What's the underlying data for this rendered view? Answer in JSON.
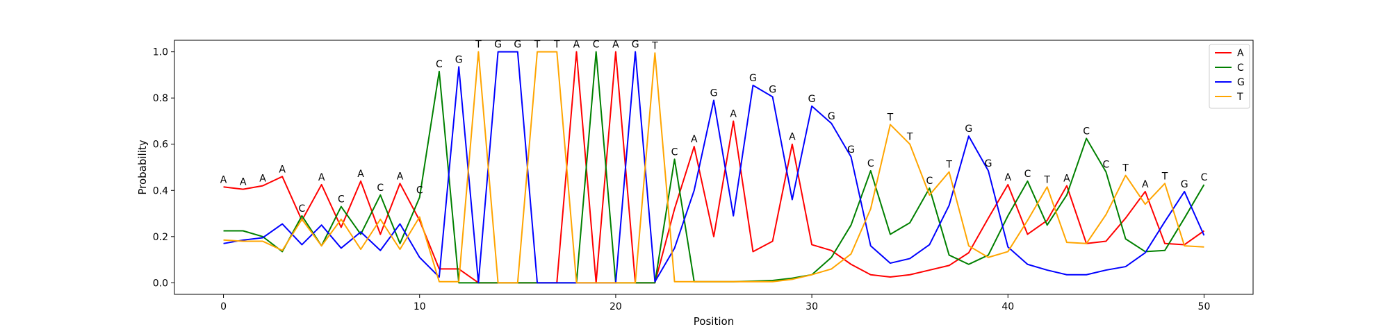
{
  "chart_data": {
    "type": "line",
    "xlabel": "Position",
    "ylabel": "Probability",
    "xlim": [
      -2.5,
      52.5
    ],
    "ylim": [
      -0.05,
      1.05
    ],
    "xticks": [
      0,
      10,
      20,
      30,
      40,
      50
    ],
    "yticks": [
      0.0,
      0.2,
      0.4,
      0.6,
      0.8,
      1.0
    ],
    "xtick_labels": [
      "0",
      "10",
      "20",
      "30",
      "40",
      "50"
    ],
    "ytick_labels": [
      "0.0",
      "0.2",
      "0.4",
      "0.6",
      "0.8",
      "1.0"
    ],
    "grid": false,
    "legend": "top-right",
    "x": [
      0,
      1,
      2,
      3,
      4,
      5,
      6,
      7,
      8,
      9,
      10,
      11,
      12,
      13,
      14,
      15,
      16,
      17,
      18,
      19,
      20,
      21,
      22,
      23,
      24,
      25,
      26,
      27,
      28,
      29,
      30,
      31,
      32,
      33,
      34,
      35,
      36,
      37,
      38,
      39,
      40,
      41,
      42,
      43,
      44,
      45,
      46,
      47,
      48,
      49,
      50
    ],
    "series": [
      {
        "name": "A",
        "color": "#ff0000",
        "values": [
          0.415,
          0.405,
          0.42,
          0.46,
          0.27,
          0.425,
          0.24,
          0.44,
          0.21,
          0.43,
          0.27,
          0.06,
          0.06,
          0.0,
          0.0,
          0.0,
          0.0,
          0.0,
          1.0,
          0.0,
          1.0,
          0.0,
          0.0,
          0.32,
          0.59,
          0.2,
          0.7,
          0.135,
          0.18,
          0.6,
          0.165,
          0.14,
          0.08,
          0.035,
          0.025,
          0.035,
          0.055,
          0.075,
          0.13,
          0.28,
          0.425,
          0.21,
          0.27,
          0.42,
          0.17,
          0.18,
          0.28,
          0.395,
          0.17,
          0.165,
          0.225
        ]
      },
      {
        "name": "C",
        "color": "#008000",
        "values": [
          0.225,
          0.225,
          0.2,
          0.135,
          0.29,
          0.16,
          0.33,
          0.21,
          0.38,
          0.17,
          0.37,
          0.915,
          0.0,
          0.0,
          0.0,
          0.0,
          0.0,
          0.0,
          0.0,
          1.0,
          0.0,
          0.0,
          0.0,
          0.535,
          0.005,
          0.005,
          0.005,
          0.007,
          0.01,
          0.02,
          0.035,
          0.11,
          0.25,
          0.485,
          0.21,
          0.26,
          0.41,
          0.12,
          0.08,
          0.12,
          0.29,
          0.44,
          0.25,
          0.38,
          0.625,
          0.48,
          0.19,
          0.135,
          0.14,
          0.28,
          0.425
        ]
      },
      {
        "name": "G",
        "color": "#0000ff",
        "values": [
          0.17,
          0.185,
          0.195,
          0.255,
          0.165,
          0.25,
          0.15,
          0.22,
          0.14,
          0.255,
          0.11,
          0.025,
          0.935,
          0.0,
          1.0,
          1.0,
          0.0,
          0.0,
          0.0,
          0.0,
          0.0,
          1.0,
          0.005,
          0.15,
          0.4,
          0.79,
          0.29,
          0.855,
          0.805,
          0.36,
          0.765,
          0.69,
          0.545,
          0.16,
          0.085,
          0.105,
          0.165,
          0.335,
          0.635,
          0.485,
          0.155,
          0.08,
          0.055,
          0.035,
          0.035,
          0.055,
          0.07,
          0.13,
          0.265,
          0.395,
          0.205
        ]
      },
      {
        "name": "T",
        "color": "#ffa500",
        "values": [
          0.185,
          0.18,
          0.18,
          0.14,
          0.275,
          0.16,
          0.275,
          0.145,
          0.275,
          0.145,
          0.285,
          0.005,
          0.005,
          1.0,
          0.0,
          0.0,
          1.0,
          1.0,
          0.0,
          0.0,
          0.0,
          0.0,
          0.995,
          0.005,
          0.005,
          0.005,
          0.005,
          0.005,
          0.005,
          0.015,
          0.035,
          0.06,
          0.125,
          0.32,
          0.685,
          0.6,
          0.38,
          0.48,
          0.16,
          0.11,
          0.135,
          0.27,
          0.415,
          0.175,
          0.17,
          0.295,
          0.465,
          0.34,
          0.43,
          0.16,
          0.155
        ]
      }
    ],
    "peak_labels": [
      "A",
      "A",
      "A",
      "A",
      "C",
      "A",
      "C",
      "A",
      "C",
      "A",
      "C",
      "C",
      "G",
      "T",
      "G",
      "G",
      "T",
      "T",
      "A",
      "C",
      "A",
      "G",
      "T",
      "C",
      "A",
      "G",
      "A",
      "G",
      "G",
      "A",
      "G",
      "G",
      "G",
      "C",
      "T",
      "T",
      "C",
      "T",
      "G",
      "G",
      "A",
      "C",
      "T",
      "A",
      "C",
      "C",
      "T",
      "A",
      "T",
      "G",
      "C"
    ]
  }
}
